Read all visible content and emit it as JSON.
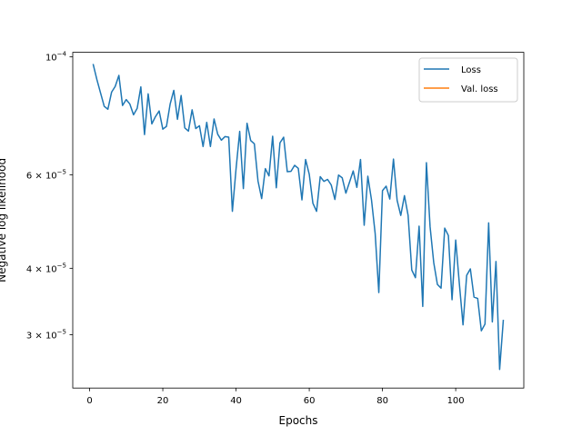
{
  "chart_data": {
    "type": "line",
    "title": "",
    "xlabel": "Epochs",
    "ylabel": "Negative log likelihood",
    "yscale": "log",
    "xlim": [
      -4.6,
      118.6
    ],
    "ylim": [
      2.38e-05,
      0.000102
    ],
    "x_ticks": [
      0,
      20,
      40,
      60,
      80,
      100
    ],
    "x_tick_labels": [
      "0",
      "20",
      "40",
      "60",
      "80",
      "100"
    ],
    "y_ticks": [
      0.0001,
      6e-05,
      4e-05,
      3e-05
    ],
    "y_tick_labels": [
      {
        "mantissa": "",
        "base": "10",
        "exp": "−4"
      },
      {
        "mantissa": "6 × ",
        "base": "10",
        "exp": "−5"
      },
      {
        "mantissa": "4 × ",
        "base": "10",
        "exp": "−5"
      },
      {
        "mantissa": "3 × ",
        "base": "10",
        "exp": "−5"
      }
    ],
    "grid": false,
    "legend_position": "top-right",
    "series": [
      {
        "name": "Loss",
        "color": "#1f77b4",
        "x": [
          1,
          2,
          3,
          4,
          5,
          6,
          7,
          8,
          9,
          10,
          11,
          12,
          13,
          14,
          15,
          16,
          17,
          18,
          19,
          20,
          21,
          22,
          23,
          24,
          25,
          26,
          27,
          28,
          29,
          30,
          31,
          32,
          33,
          34,
          35,
          36,
          37,
          38,
          39,
          40,
          41,
          42,
          43,
          44,
          45,
          46,
          47,
          48,
          49,
          50,
          51,
          52,
          53,
          54,
          55,
          56,
          57,
          58,
          59,
          60,
          61,
          62,
          63,
          64,
          65,
          66,
          67,
          68,
          69,
          70,
          71,
          72,
          73,
          74,
          75,
          76,
          77,
          78,
          79,
          80,
          81,
          82,
          83,
          84,
          85,
          86,
          87,
          88,
          89,
          90,
          91,
          92,
          93,
          94,
          95,
          96,
          97,
          98,
          99,
          100,
          101,
          102,
          103,
          104,
          105,
          106,
          107,
          108,
          109,
          110,
          111,
          112,
          113
        ],
        "values": [
          9.67e-05,
          9.06e-05,
          8.55e-05,
          8.07e-05,
          7.97e-05,
          8.58e-05,
          8.8e-05,
          9.23e-05,
          8.1e-05,
          8.31e-05,
          8.15e-05,
          7.78e-05,
          8e-05,
          8.78e-05,
          7.14e-05,
          8.52e-05,
          7.48e-05,
          7.72e-05,
          7.91e-05,
          7.31e-05,
          7.4e-05,
          8.15e-05,
          8.65e-05,
          7.63e-05,
          8.46e-05,
          7.35e-05,
          7.25e-05,
          7.95e-05,
          7.33e-05,
          7.42e-05,
          6.78e-05,
          7.53e-05,
          6.78e-05,
          7.64e-05,
          7.15e-05,
          6.97e-05,
          7.08e-05,
          7.06e-05,
          5.12e-05,
          6.15e-05,
          7.24e-05,
          5.65e-05,
          7.5e-05,
          6.96e-05,
          6.86e-05,
          5.84e-05,
          5.41e-05,
          6.16e-05,
          5.97e-05,
          7.09e-05,
          5.67e-05,
          6.89e-05,
          7.06e-05,
          6.08e-05,
          6.09e-05,
          6.25e-05,
          6.17e-05,
          5.38e-05,
          6.41e-05,
          6.01e-05,
          5.3e-05,
          5.12e-05,
          5.95e-05,
          5.83e-05,
          5.88e-05,
          5.74e-05,
          5.39e-05,
          5.99e-05,
          5.92e-05,
          5.54e-05,
          5.81e-05,
          6.1e-05,
          5.68e-05,
          6.41e-05,
          4.82e-05,
          5.96e-05,
          5.38e-05,
          4.65e-05,
          3.6e-05,
          5.6e-05,
          5.71e-05,
          5.4e-05,
          6.42e-05,
          5.37e-05,
          5.03e-05,
          5.48e-05,
          5.03e-05,
          3.97e-05,
          3.84e-05,
          4.8e-05,
          3.39e-05,
          6.32e-05,
          4.79e-05,
          4.1e-05,
          3.73e-05,
          3.67e-05,
          4.76e-05,
          4.61e-05,
          3.49e-05,
          4.52e-05,
          3.74e-05,
          3.13e-05,
          3.88e-05,
          3.99e-05,
          3.53e-05,
          3.51e-05,
          3.05e-05,
          3.14e-05,
          4.87e-05,
          3.17e-05,
          4.12e-05,
          2.58e-05,
          3.19e-05
        ]
      },
      {
        "name": "Val. loss",
        "color": "#ff7f0e",
        "x": [],
        "values": []
      }
    ]
  }
}
